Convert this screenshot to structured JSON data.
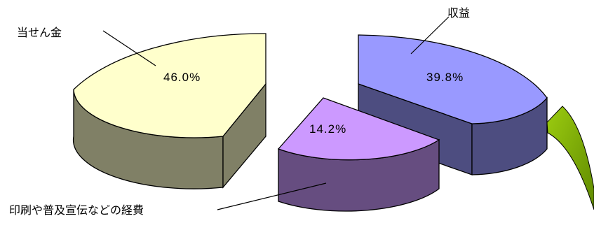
{
  "chart_data": {
    "type": "pie",
    "style": "3d-exploded",
    "slices": [
      {
        "label": "当せん金",
        "value": 46.0,
        "display": "46.0%",
        "color": "#ffffcc",
        "side_color": "#808066"
      },
      {
        "label": "収益",
        "value": 39.8,
        "display": "39.8%",
        "color": "#9999ff",
        "side_color": "#4d4d80"
      },
      {
        "label": "印刷や普及宣伝などの経費",
        "value": 14.2,
        "display": "14.2%",
        "color": "#cc99ff",
        "side_color": "#664d80"
      }
    ],
    "accent_color": "#80b000"
  }
}
